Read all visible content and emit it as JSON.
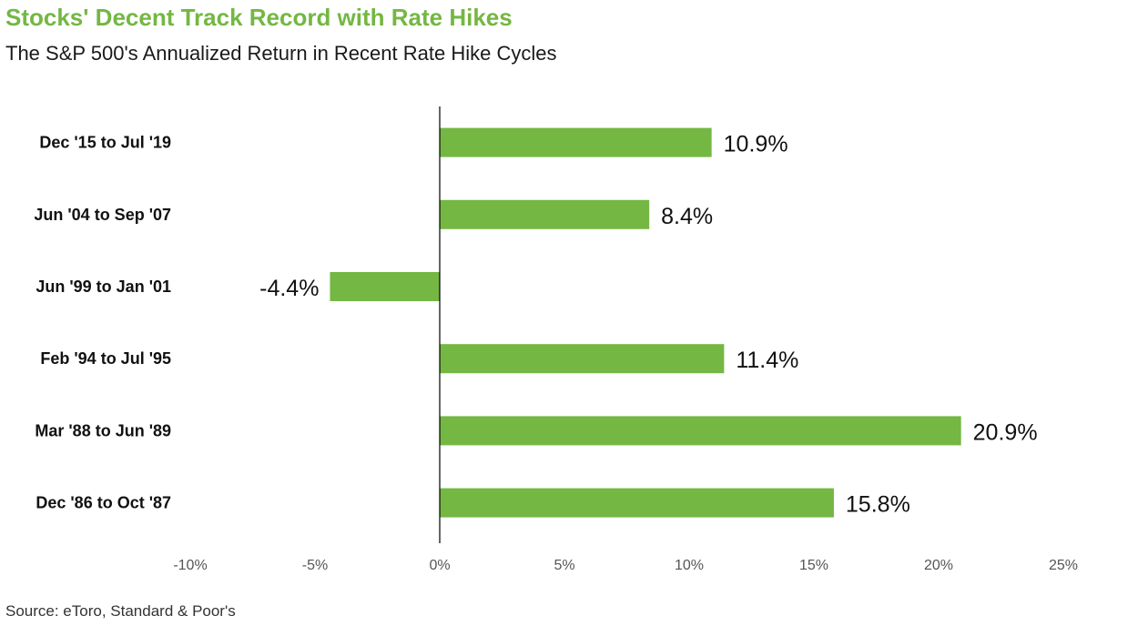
{
  "colors": {
    "accent": "#74b743",
    "bar": "#74b743",
    "text": "#111111",
    "tick": "#555555",
    "axis": "#000000"
  },
  "header": {
    "title": "Stocks' Decent Track Record with Rate Hikes",
    "subtitle": "The S&P 500's Annualized Return in Recent Rate Hike Cycles"
  },
  "footer": {
    "source": "Source: eToro, Standard & Poor's"
  },
  "chart_data": {
    "type": "bar",
    "orientation": "horizontal",
    "title": "Stocks' Decent Track Record with Rate Hikes",
    "subtitle": "The S&P 500's Annualized Return in Recent Rate Hike Cycles",
    "categories": [
      "Dec '15 to Jul '19",
      "Jun '04 to Sep '07",
      "Jun '99 to Jan '01",
      "Feb '94 to Jul '95",
      "Mar '88 to Jun '89",
      "Dec '86 to Oct '87"
    ],
    "values": [
      10.9,
      8.4,
      -4.4,
      11.4,
      20.9,
      15.8
    ],
    "data_labels": [
      "10.9%",
      "8.4%",
      "-4.4%",
      "11.4%",
      "20.9%",
      "15.8%"
    ],
    "xlim": [
      -10,
      25
    ],
    "xticks": [
      -10,
      -5,
      0,
      5,
      10,
      15,
      20,
      25
    ],
    "xtick_labels": [
      "-10%",
      "-5%",
      "0%",
      "5%",
      "10%",
      "15%",
      "20%",
      "25%"
    ],
    "xlabel": "",
    "ylabel": "",
    "grid": false,
    "legend": "none"
  }
}
